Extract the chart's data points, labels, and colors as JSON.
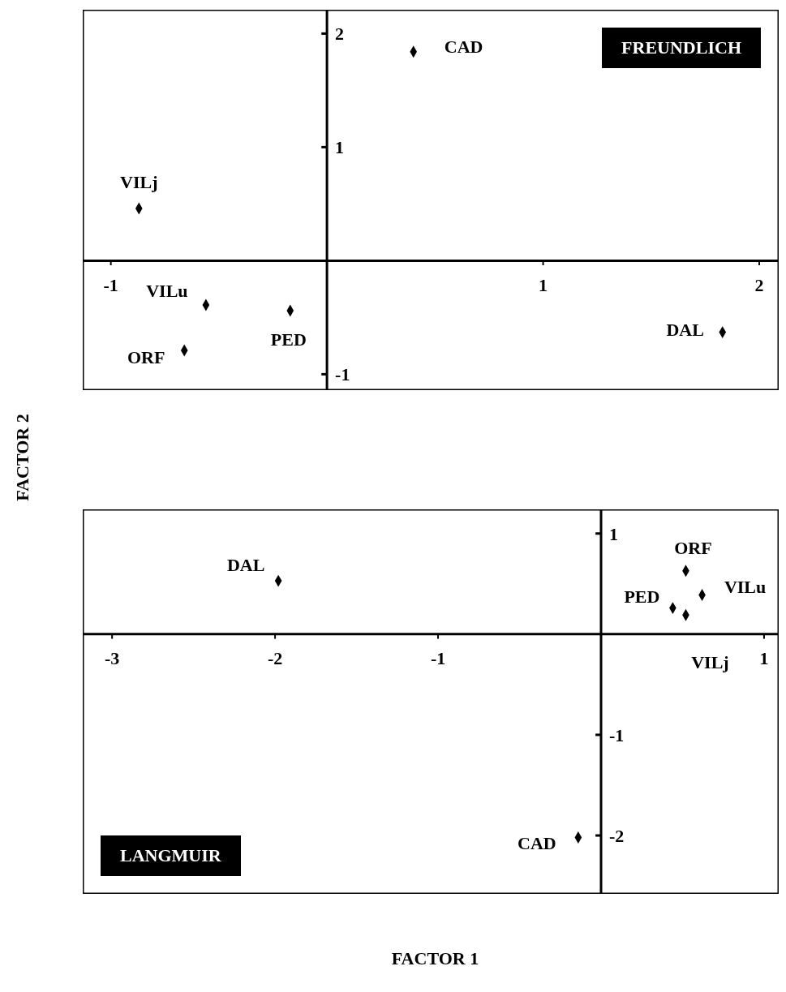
{
  "chart_data": [
    {
      "type": "scatter",
      "title": "FREUNDLICH",
      "ylabel": "FACTOR 2",
      "marker": "diamond",
      "xlim": [
        -1.13,
        2.09
      ],
      "ylim": [
        -1.14,
        2.21
      ],
      "xticks": [
        -1,
        1,
        2
      ],
      "yticks": [
        -1,
        1,
        2
      ],
      "series": [
        {
          "color": "#000000",
          "x": [
            0.4,
            -0.87,
            -0.56,
            -0.17,
            -0.66,
            1.83
          ],
          "values": [
            1.84,
            0.46,
            -0.39,
            -0.44,
            -0.79,
            -0.63
          ]
        }
      ],
      "annotations": [
        {
          "text": "CAD",
          "x": 0.4,
          "y": 1.84
        },
        {
          "text": "VILj",
          "x": -0.87,
          "y": 0.46
        },
        {
          "text": "VILu",
          "x": -0.56,
          "y": -0.39
        },
        {
          "text": "PED",
          "x": -0.17,
          "y": -0.44
        },
        {
          "text": "ORF",
          "x": -0.66,
          "y": -0.79
        },
        {
          "text": "DAL",
          "x": 1.83,
          "y": -0.63
        }
      ]
    },
    {
      "type": "scatter",
      "title": "LANGMUIR",
      "xlabel": "FACTOR 1",
      "marker": "diamond",
      "xlim": [
        -3.18,
        1.09
      ],
      "ylim": [
        -2.58,
        1.24
      ],
      "xticks": [
        -3,
        -2,
        -1,
        1
      ],
      "yticks": [
        -2,
        -1,
        1
      ],
      "series": [
        {
          "color": "#000000",
          "x": [
            -1.98,
            0.52,
            0.62,
            0.44,
            0.52,
            -0.14
          ],
          "values": [
            0.53,
            0.63,
            0.39,
            0.26,
            0.19,
            -2.02
          ]
        }
      ],
      "annotations": [
        {
          "text": "DAL",
          "x": -1.98,
          "y": 0.53
        },
        {
          "text": "ORF",
          "x": 0.52,
          "y": 0.63
        },
        {
          "text": "VILu",
          "x": 0.62,
          "y": 0.39
        },
        {
          "text": "PED",
          "x": 0.44,
          "y": 0.26
        },
        {
          "text": "VILj",
          "x": 0.52,
          "y": 0.19
        },
        {
          "text": "CAD",
          "x": -0.14,
          "y": -2.02
        }
      ]
    }
  ]
}
